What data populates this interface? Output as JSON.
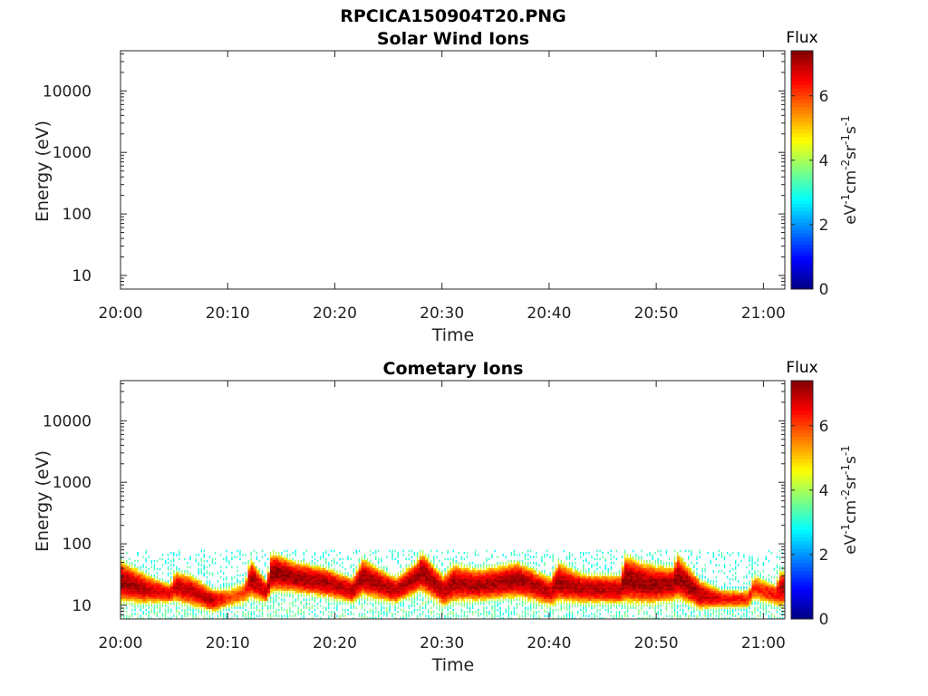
{
  "figure": {
    "title": "RPCICA150904T20.PNG"
  },
  "chart_data": [
    {
      "type": "heatmap",
      "title": "Solar Wind Ions",
      "xlabel": "Time",
      "ylabel": "Energy (eV)",
      "x_range": [
        "20:00",
        "21:02"
      ],
      "x_ticks": [
        "20:00",
        "20:10",
        "20:20",
        "20:30",
        "20:40",
        "20:50",
        "21:00"
      ],
      "y_scale": "log",
      "y_range": [
        6,
        45000
      ],
      "y_ticks": [
        "10",
        "100",
        "1000",
        "10000"
      ],
      "colorbar": {
        "title": "Flux",
        "label": "eV-1cm-2sr-1s-1",
        "range": [
          0,
          7.4
        ],
        "ticks": [
          "0",
          "2",
          "4",
          "6"
        ],
        "colormap": "jet"
      },
      "data_description": "empty",
      "band": []
    },
    {
      "type": "heatmap",
      "title": "Cometary Ions",
      "xlabel": "Time",
      "ylabel": "Energy (eV)",
      "x_range": [
        "20:00",
        "21:02"
      ],
      "x_ticks": [
        "20:00",
        "20:10",
        "20:20",
        "20:30",
        "20:40",
        "20:50",
        "21:00"
      ],
      "y_scale": "log",
      "y_range": [
        6,
        45000
      ],
      "y_ticks": [
        "10",
        "100",
        "1000",
        "10000"
      ],
      "colorbar": {
        "title": "Flux",
        "label": "eV-1cm-2sr-1s-1",
        "range": [
          0,
          7.4
        ],
        "ticks": [
          "0",
          "2",
          "4",
          "6"
        ],
        "colormap": "jet"
      },
      "noise_energy_range_eV": [
        6,
        80
      ],
      "band": [
        {
          "t": 0.0,
          "lo": 12,
          "hi": 50,
          "peak": 7.2
        },
        {
          "t": 2.0,
          "lo": 11,
          "hi": 33,
          "peak": 7.0
        },
        {
          "t": 4.5,
          "lo": 11,
          "hi": 22,
          "peak": 6.6
        },
        {
          "t": 5.0,
          "lo": 12,
          "hi": 35,
          "peak": 7.0
        },
        {
          "t": 6.5,
          "lo": 10,
          "hi": 30,
          "peak": 6.9
        },
        {
          "t": 8.5,
          "lo": 8,
          "hi": 18,
          "peak": 7.0
        },
        {
          "t": 10.0,
          "lo": 9,
          "hi": 20,
          "peak": 6.0
        },
        {
          "t": 11.5,
          "lo": 10,
          "hi": 25,
          "peak": 6.0
        },
        {
          "t": 12.0,
          "lo": 14,
          "hi": 55,
          "peak": 7.2
        },
        {
          "t": 13.5,
          "lo": 11,
          "hi": 25,
          "peak": 6.8
        },
        {
          "t": 14.0,
          "lo": 18,
          "hi": 70,
          "peak": 7.3
        },
        {
          "t": 16.0,
          "lo": 17,
          "hi": 50,
          "peak": 7.2
        },
        {
          "t": 19.0,
          "lo": 14,
          "hi": 40,
          "peak": 7.1
        },
        {
          "t": 21.5,
          "lo": 11,
          "hi": 28,
          "peak": 6.9
        },
        {
          "t": 22.5,
          "lo": 15,
          "hi": 55,
          "peak": 7.2
        },
        {
          "t": 24.5,
          "lo": 12,
          "hi": 35,
          "peak": 7.1
        },
        {
          "t": 25.5,
          "lo": 11,
          "hi": 28,
          "peak": 7.0
        },
        {
          "t": 27.5,
          "lo": 16,
          "hi": 50,
          "peak": 7.1
        },
        {
          "t": 28.0,
          "lo": 18,
          "hi": 70,
          "peak": 7.3
        },
        {
          "t": 30.0,
          "lo": 10,
          "hi": 30,
          "peak": 7.0
        },
        {
          "t": 31.0,
          "lo": 12,
          "hi": 45,
          "peak": 7.1
        },
        {
          "t": 33.0,
          "lo": 12,
          "hi": 38,
          "peak": 7.1
        },
        {
          "t": 35.0,
          "lo": 13,
          "hi": 42,
          "peak": 7.1
        },
        {
          "t": 37.0,
          "lo": 14,
          "hi": 48,
          "peak": 7.2
        },
        {
          "t": 40.0,
          "lo": 10,
          "hi": 28,
          "peak": 6.9
        },
        {
          "t": 40.8,
          "lo": 12,
          "hi": 48,
          "peak": 7.2
        },
        {
          "t": 43.0,
          "lo": 11,
          "hi": 32,
          "peak": 7.0
        },
        {
          "t": 46.5,
          "lo": 11,
          "hi": 30,
          "peak": 7.0
        },
        {
          "t": 47.0,
          "lo": 12,
          "hi": 60,
          "peak": 7.3
        },
        {
          "t": 49.0,
          "lo": 11,
          "hi": 45,
          "peak": 7.2
        },
        {
          "t": 51.5,
          "lo": 12,
          "hi": 40,
          "peak": 7.1
        },
        {
          "t": 51.8,
          "lo": 14,
          "hi": 65,
          "peak": 7.3
        },
        {
          "t": 54.0,
          "lo": 9,
          "hi": 25,
          "peak": 7.1
        },
        {
          "t": 56.0,
          "lo": 9,
          "hi": 18,
          "peak": 6.6
        },
        {
          "t": 58.5,
          "lo": 9,
          "hi": 18,
          "peak": 6.3
        },
        {
          "t": 59.0,
          "lo": 12,
          "hi": 32,
          "peak": 6.2
        },
        {
          "t": 61.0,
          "lo": 10,
          "hi": 22,
          "peak": 6.5
        },
        {
          "t": 61.5,
          "lo": 10,
          "hi": 35,
          "peak": 7.0
        }
      ]
    }
  ]
}
